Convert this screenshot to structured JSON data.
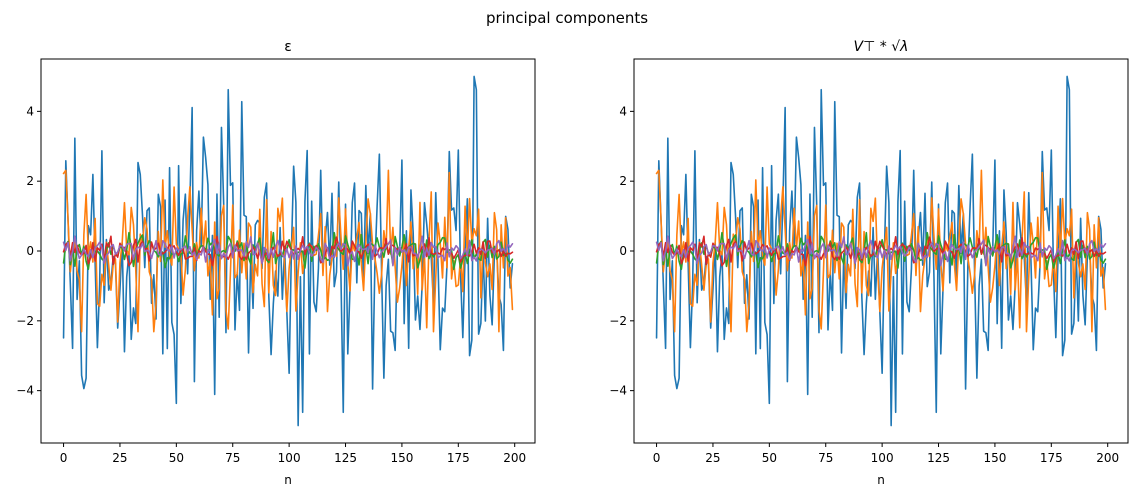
{
  "chart_data": {
    "suptitle": "principal components",
    "type": "line",
    "xlabel": "n",
    "xlim": [
      -10,
      209
    ],
    "ylim": [
      -5.5,
      5.5
    ],
    "xticks": [
      0,
      25,
      50,
      75,
      100,
      125,
      150,
      175,
      200
    ],
    "yticks": [
      -4,
      -2,
      0,
      2,
      4
    ],
    "series_colors": [
      "#1f77b4",
      "#ff7f0e",
      "#2ca02c",
      "#d62728",
      "#9467bd"
    ],
    "series_amplitudes": [
      2.2,
      1.1,
      0.25,
      0.2,
      0.2
    ],
    "n_points": 200,
    "panels": [
      {
        "title": "ε",
        "title_is_math": false
      },
      {
        "title": "V⊤ * √λ",
        "title_is_math": true
      }
    ],
    "peaks": {
      "max_y": 5.0,
      "max_x": 182,
      "min_y": -5.0,
      "min_x": 104
    }
  }
}
